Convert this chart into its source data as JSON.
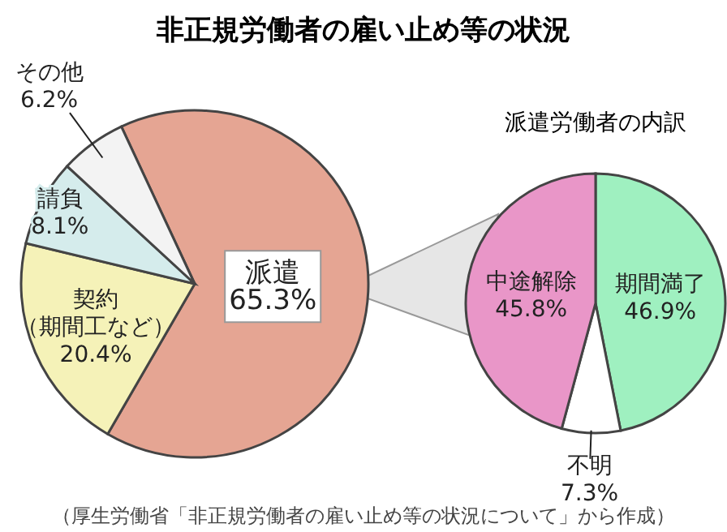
{
  "chart_data": [
    {
      "type": "pie",
      "title": "非正規労働者の雇い止め等の状況",
      "categories": [
        "派遣",
        "契約（期間工など）",
        "請負",
        "その他"
      ],
      "values": [
        65.3,
        20.4,
        8.1,
        6.2
      ],
      "value_labels": [
        "65.3%",
        "20.4%",
        "8.1%",
        "6.2%"
      ],
      "colors": [
        "#e5a593",
        "#f5f2b8",
        "#d5ecec",
        "#f3f3f3"
      ],
      "annotations": [
        "（厚生労働省「非正規労働者の雇い止め等の状況について」から作成）"
      ]
    },
    {
      "type": "pie",
      "title": "派遣労働者の内訳",
      "categories": [
        "期間満了",
        "不明",
        "中途解除"
      ],
      "values": [
        46.9,
        7.3,
        45.8
      ],
      "value_labels": [
        "46.9%",
        "7.3%",
        "45.8%"
      ],
      "colors": [
        "#9ff0c0",
        "#ffffff",
        "#e996c8"
      ]
    }
  ]
}
